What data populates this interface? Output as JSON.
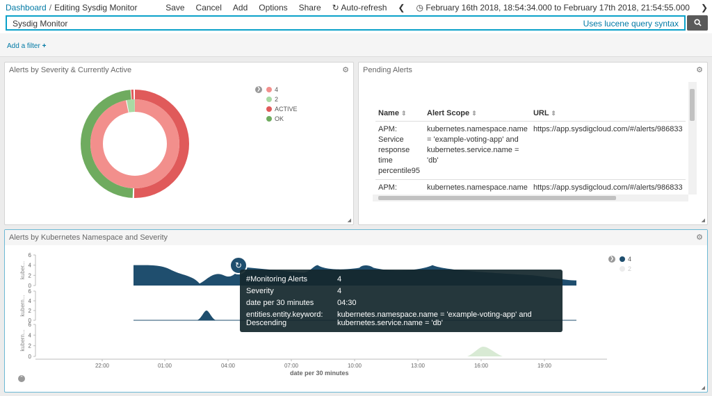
{
  "breadcrumb": {
    "home": "Dashboard",
    "separator": "/",
    "current": "Editing Sysdig Monitor"
  },
  "toolbar": {
    "save": "Save",
    "cancel": "Cancel",
    "add": "Add",
    "options": "Options",
    "share": "Share",
    "autorefresh": "Auto-refresh",
    "timerange": "February 16th 2018, 18:54:34.000 to February 17th 2018, 21:54:55.000"
  },
  "search": {
    "value": "Sysdig Monitor",
    "hint": "Uses lucene query syntax"
  },
  "filter": {
    "add_label": "Add a filter"
  },
  "panel1": {
    "title": "Alerts by Severity & Currently Active",
    "legend": [
      {
        "label": "4",
        "color": "#f28f8c"
      },
      {
        "label": "2",
        "color": "#a8d9a3"
      },
      {
        "label": "ACTIVE",
        "color": "#e05a5a"
      },
      {
        "label": "OK",
        "color": "#6fab5f"
      }
    ]
  },
  "panel2": {
    "title": "Pending Alerts",
    "columns": [
      "Name",
      "Alert Scope",
      "URL"
    ],
    "rows": [
      {
        "name": "APM: Service response time percentile95",
        "scope": "kubernetes.namespace.name = 'example-voting-app' and kubernetes.service.name = 'db'",
        "url": "https://app.sysdigcloud.com/#/alerts/986833"
      },
      {
        "name": "APM: Service response time",
        "scope": "kubernetes.namespace.name = null and kubernetes.service.name =",
        "url": "https://app.sysdigcloud.com/#/alerts/986833"
      }
    ]
  },
  "panel3": {
    "title": "Alerts by Kubernetes Namespace and Severity",
    "xlabel": "date per 30 minutes",
    "xticks": [
      "22:00",
      "01:00",
      "04:00",
      "07:00",
      "10:00",
      "13:00",
      "16:00",
      "19:00"
    ],
    "yticks": [
      "0",
      "2",
      "4",
      "6"
    ],
    "row_label_1": "kuber...",
    "row_label_2": "kubern...",
    "row_label_3": "kubern...",
    "legend": [
      {
        "label": "4",
        "color": "#1f4e6e"
      },
      {
        "label": "2",
        "color": "#d8ead4"
      }
    ]
  },
  "tooltip": {
    "k1": "#Monitoring Alerts",
    "v1": "4",
    "k2": "Severity",
    "v2": "4",
    "k3": "date per 30 minutes",
    "v3": "04:30",
    "k4": "entities.entity.keyword: Descending",
    "v4": "kubernetes.namespace.name = 'example-voting-app' and kubernetes.service.name = 'db'"
  },
  "chart_data": {
    "type": "area",
    "title": "Alerts by Kubernetes Namespace and Severity",
    "xlabel": "date per 30 minutes",
    "ylabel": "",
    "categories": [
      "22:00",
      "01:00",
      "04:00",
      "07:00",
      "10:00",
      "13:00",
      "16:00",
      "19:00"
    ],
    "ylim": [
      0,
      6
    ],
    "series": [
      {
        "name": "4",
        "values": [
          4,
          4,
          2,
          3,
          4,
          4,
          3,
          2
        ]
      },
      {
        "name": "2",
        "values": [
          0,
          0,
          0,
          0,
          0,
          0,
          2,
          0
        ]
      }
    ]
  }
}
